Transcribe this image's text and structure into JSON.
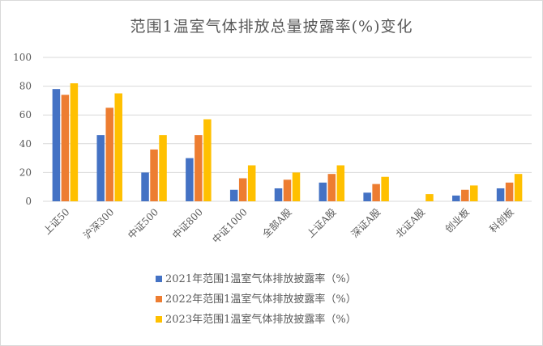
{
  "chart_data": {
    "type": "bar",
    "title": "范围1温室气体排放总量披露率(%)变化",
    "categories": [
      "上证50",
      "沪深300",
      "中证500",
      "中证800",
      "中证1000",
      "全部A股",
      "上证A股",
      "深证A股",
      "北证A股",
      "创业板",
      "科创板"
    ],
    "series": [
      {
        "name": "2021年范围1温室气体排放披露率（%）",
        "color": "#4472C4",
        "values": [
          78,
          46,
          20,
          30,
          8,
          9,
          13,
          6,
          0,
          4,
          9
        ]
      },
      {
        "name": "2022年范围1温室气体排放披露率（%）",
        "color": "#ED7D31",
        "values": [
          74,
          65,
          36,
          46,
          16,
          15,
          19,
          12,
          0,
          8,
          13
        ]
      },
      {
        "name": "2023年范围1温室气体排放披露率（%）",
        "color": "#FFC000",
        "values": [
          82,
          75,
          46,
          57,
          25,
          20,
          25,
          17,
          5,
          11,
          19
        ]
      }
    ],
    "yticks": [
      "0",
      "20",
      "40",
      "60",
      "80",
      "100"
    ],
    "ylim": [
      0,
      100
    ],
    "grid": true,
    "legend_position": "bottom"
  }
}
